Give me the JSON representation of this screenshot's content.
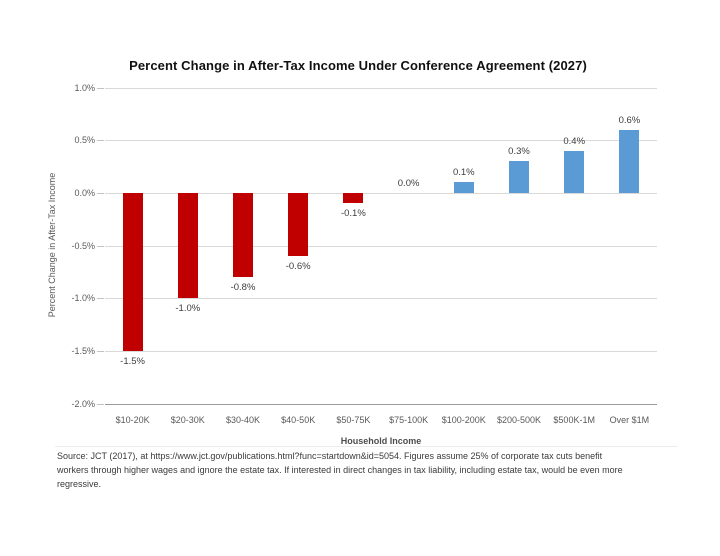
{
  "chart_data": {
    "type": "bar",
    "title": "Percent Change in After-Tax Income Under Conference Agreement (2027)",
    "xlabel": "Household Income",
    "ylabel": "Percent Change in After-Tax Income",
    "categories": [
      "$10-20K",
      "$20-30K",
      "$30-40K",
      "$40-50K",
      "$50-75K",
      "$75-100K",
      "$100-200K",
      "$200-500K",
      "$500K-1M",
      "Over $1M"
    ],
    "values": [
      -1.5,
      -1.0,
      -0.8,
      -0.6,
      -0.1,
      0.0,
      0.1,
      0.3,
      0.4,
      0.6
    ],
    "data_labels": [
      "-1.5%",
      "-1.0%",
      "-0.8%",
      "-0.6%",
      "-0.1%",
      "0.0%",
      "0.1%",
      "0.3%",
      "0.4%",
      "0.6%"
    ],
    "y_ticks": [
      "1.0%",
      "0.5%",
      "0.0%",
      "-0.5%",
      "-1.0%",
      "-1.5%",
      "-2.0%"
    ],
    "ylim": [
      -2.0,
      1.0
    ],
    "grid": true,
    "legend_position": "none",
    "colors": {
      "negative": "#c00000",
      "positive": "#5b9bd5",
      "gridline": "#d9d9d9",
      "axis_line": "#9a9a9a",
      "tick_text": "#595959",
      "label_text": "#3d3d3d"
    }
  },
  "footnote": {
    "lines": [
      "Source: JCT (2017), at https://www.jct.gov/publications.html?func=startdown&id=5054. Figures assume 25% of corporate tax cuts benefit",
      "workers through higher wages and ignore the estate tax. If interested in direct changes in tax liability, including estate tax, would be even more",
      "regressive."
    ]
  }
}
